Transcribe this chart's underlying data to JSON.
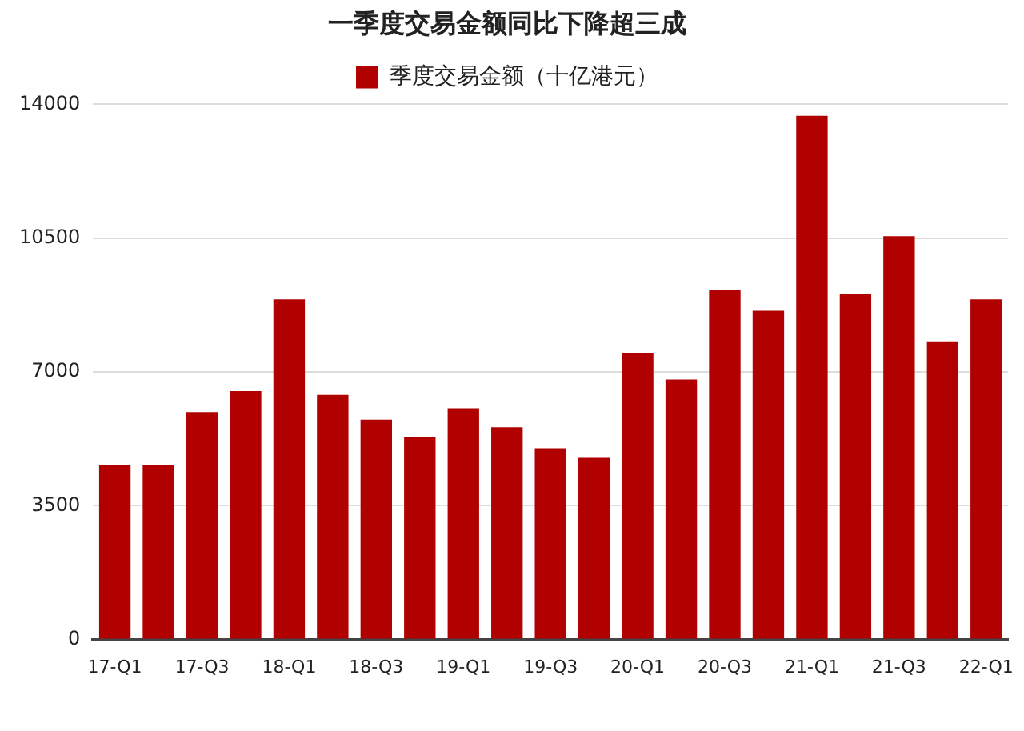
{
  "chart_data": {
    "type": "bar",
    "title": "一季度交易金额同比下降超三成",
    "categories": [
      "17-Q1",
      null,
      "17-Q3",
      null,
      "18-Q1",
      null,
      "18-Q3",
      null,
      "19-Q1",
      null,
      "19-Q3",
      null,
      "20-Q1",
      null,
      "20-Q3",
      null,
      "21-Q1",
      null,
      "21-Q3",
      null,
      "22-Q1"
    ],
    "series": [
      {
        "name": "季度交易金额（十亿港元）",
        "color": "#b00000",
        "values": [
          4550,
          4550,
          5950,
          6500,
          8900,
          6400,
          5750,
          5300,
          6050,
          5550,
          5000,
          4750,
          7500,
          6800,
          9150,
          8600,
          13700,
          9050,
          10550,
          7800,
          8900
        ]
      }
    ],
    "ylim": [
      0,
      14000
    ],
    "yticks": [
      0,
      3500,
      7000,
      10500,
      14000
    ],
    "grid": "y",
    "legend": "top"
  }
}
